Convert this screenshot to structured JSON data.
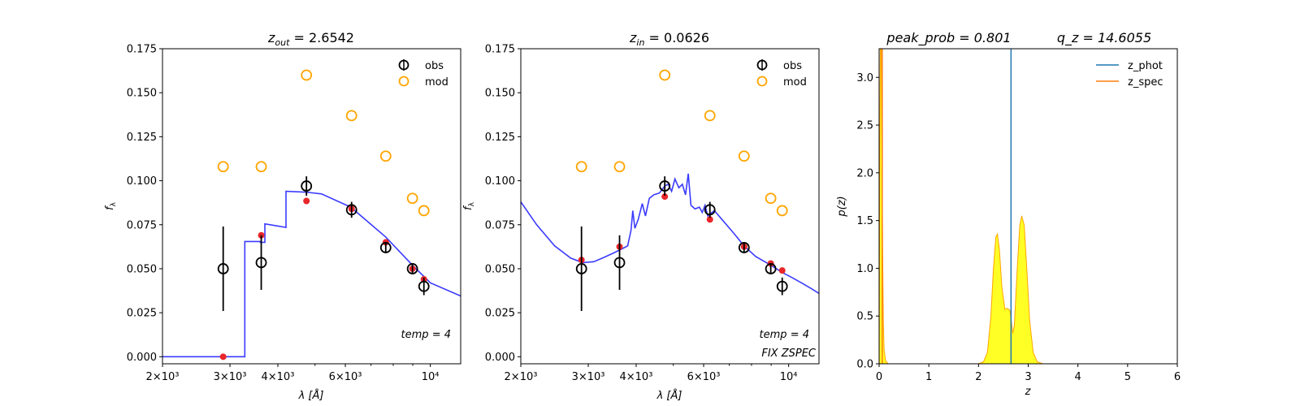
{
  "chart_data": [
    {
      "type": "scatter",
      "title": "z_out = 2.6542",
      "title_main": "z",
      "title_sub": "out",
      "title_value": " = 2.6542",
      "xlabel": "λ [Å]",
      "ylabel": "f_λ",
      "ylabel_main": "f",
      "ylabel_sub": "λ",
      "xscale": "log",
      "xlim": [
        2000,
        12000
      ],
      "ylim": [
        -0.004,
        0.175
      ],
      "xticks": [
        {
          "value": 2000,
          "label": "2×10³"
        },
        {
          "value": 3000,
          "label": "3×10³"
        },
        {
          "value": 4000,
          "label": "4×10³"
        },
        {
          "value": 6000,
          "label": "6×10³"
        },
        {
          "value": 10000,
          "label": "10⁴"
        }
      ],
      "yticks": [
        {
          "value": 0.0,
          "label": "0.000"
        },
        {
          "value": 0.025,
          "label": "0.025"
        },
        {
          "value": 0.05,
          "label": "0.050"
        },
        {
          "value": 0.075,
          "label": "0.075"
        },
        {
          "value": 0.1,
          "label": "0.100"
        },
        {
          "value": 0.125,
          "label": "0.125"
        },
        {
          "value": 0.15,
          "label": "0.150"
        },
        {
          "value": 0.175,
          "label": "0.175"
        }
      ],
      "legend": {
        "position": "top-right",
        "entries": [
          {
            "label": "obs",
            "color": "#000000"
          },
          {
            "label": "mod",
            "color": "#ffa500"
          }
        ]
      },
      "annotations": [
        {
          "text": "temp = 4",
          "position": "bottom-right"
        }
      ],
      "obs": [
        {
          "x": 2880,
          "y": 0.05,
          "err": 0.024
        },
        {
          "x": 3620,
          "y": 0.0535,
          "err": 0.0155
        },
        {
          "x": 4750,
          "y": 0.097,
          "err": 0.0055
        },
        {
          "x": 6230,
          "y": 0.0835,
          "err": 0.0045
        },
        {
          "x": 7650,
          "y": 0.062,
          "err": 0.003
        },
        {
          "x": 8980,
          "y": 0.05,
          "err": 0.0025
        },
        {
          "x": 9620,
          "y": 0.04,
          "err": 0.005
        }
      ],
      "mod": [
        {
          "x": 2880,
          "y": 0.108
        },
        {
          "x": 3620,
          "y": 0.108
        },
        {
          "x": 4750,
          "y": 0.16
        },
        {
          "x": 6230,
          "y": 0.137
        },
        {
          "x": 7650,
          "y": 0.114
        },
        {
          "x": 8980,
          "y": 0.09
        },
        {
          "x": 9620,
          "y": 0.083
        }
      ],
      "fit_points": [
        {
          "x": 2880,
          "y": 0.0
        },
        {
          "x": 3620,
          "y": 0.069
        },
        {
          "x": 4750,
          "y": 0.0885
        },
        {
          "x": 6230,
          "y": 0.084
        },
        {
          "x": 7650,
          "y": 0.065
        },
        {
          "x": 8980,
          "y": 0.05
        },
        {
          "x": 9620,
          "y": 0.044
        }
      ],
      "template_curve": [
        [
          2000,
          0.0
        ],
        [
          3280,
          0.0
        ],
        [
          3280,
          0.0655
        ],
        [
          3600,
          0.0655
        ],
        [
          3600,
          0.065
        ],
        [
          3700,
          0.065
        ],
        [
          3700,
          0.0755
        ],
        [
          4200,
          0.0735
        ],
        [
          4200,
          0.094
        ],
        [
          4750,
          0.0935
        ],
        [
          5200,
          0.0925
        ],
        [
          6200,
          0.085
        ],
        [
          7650,
          0.068
        ],
        [
          8980,
          0.052
        ],
        [
          10000,
          0.042
        ],
        [
          12000,
          0.0345
        ]
      ]
    },
    {
      "type": "scatter",
      "title": "z_in = 0.0626",
      "title_main": "z",
      "title_sub": "in",
      "title_value": " = 0.0626",
      "xlabel": "λ [Å]",
      "ylabel": "f_λ",
      "ylabel_main": "f",
      "ylabel_sub": "λ",
      "xscale": "log",
      "xlim": [
        2000,
        12000
      ],
      "ylim": [
        -0.004,
        0.175
      ],
      "xticks": [
        {
          "value": 2000,
          "label": "2×10³"
        },
        {
          "value": 3000,
          "label": "3×10³"
        },
        {
          "value": 4000,
          "label": "4×10³"
        },
        {
          "value": 6000,
          "label": "6×10³"
        },
        {
          "value": 10000,
          "label": "10⁴"
        }
      ],
      "yticks": [
        {
          "value": 0.0,
          "label": "0.000"
        },
        {
          "value": 0.025,
          "label": "0.025"
        },
        {
          "value": 0.05,
          "label": "0.050"
        },
        {
          "value": 0.075,
          "label": "0.075"
        },
        {
          "value": 0.1,
          "label": "0.100"
        },
        {
          "value": 0.125,
          "label": "0.125"
        },
        {
          "value": 0.15,
          "label": "0.150"
        },
        {
          "value": 0.175,
          "label": "0.175"
        }
      ],
      "legend": {
        "position": "top-right",
        "entries": [
          {
            "label": "obs",
            "color": "#000000"
          },
          {
            "label": "mod",
            "color": "#ffa500"
          }
        ]
      },
      "annotations": [
        {
          "text": "temp = 4",
          "position": "bottom-right"
        },
        {
          "text": "FIX ZSPEC",
          "position": "bottom-right"
        }
      ],
      "obs": [
        {
          "x": 2880,
          "y": 0.05,
          "err": 0.024
        },
        {
          "x": 3620,
          "y": 0.0535,
          "err": 0.0155
        },
        {
          "x": 4750,
          "y": 0.097,
          "err": 0.0055
        },
        {
          "x": 6230,
          "y": 0.0835,
          "err": 0.0045
        },
        {
          "x": 7650,
          "y": 0.062,
          "err": 0.003
        },
        {
          "x": 8980,
          "y": 0.05,
          "err": 0.0025
        },
        {
          "x": 9620,
          "y": 0.04,
          "err": 0.005
        }
      ],
      "mod": [
        {
          "x": 2880,
          "y": 0.108
        },
        {
          "x": 3620,
          "y": 0.108
        },
        {
          "x": 4750,
          "y": 0.16
        },
        {
          "x": 6230,
          "y": 0.137
        },
        {
          "x": 7650,
          "y": 0.114
        },
        {
          "x": 8980,
          "y": 0.09
        },
        {
          "x": 9620,
          "y": 0.083
        }
      ],
      "fit_points": [
        {
          "x": 2880,
          "y": 0.055
        },
        {
          "x": 3620,
          "y": 0.0625
        },
        {
          "x": 4750,
          "y": 0.091
        },
        {
          "x": 6230,
          "y": 0.078
        },
        {
          "x": 7650,
          "y": 0.0625
        },
        {
          "x": 8980,
          "y": 0.053
        },
        {
          "x": 9620,
          "y": 0.049
        }
      ],
      "template_curve": [
        [
          2000,
          0.088
        ],
        [
          2200,
          0.075
        ],
        [
          2450,
          0.063
        ],
        [
          2700,
          0.056
        ],
        [
          2900,
          0.0535
        ],
        [
          3100,
          0.054
        ],
        [
          3300,
          0.0565
        ],
        [
          3500,
          0.059
        ],
        [
          3650,
          0.061
        ],
        [
          3800,
          0.063
        ],
        [
          3880,
          0.072
        ],
        [
          3920,
          0.083
        ],
        [
          3970,
          0.073
        ],
        [
          4050,
          0.078
        ],
        [
          4150,
          0.087
        ],
        [
          4230,
          0.08
        ],
        [
          4330,
          0.09
        ],
        [
          4450,
          0.092
        ],
        [
          4600,
          0.093
        ],
        [
          4750,
          0.097
        ],
        [
          4850,
          0.098
        ],
        [
          4950,
          0.094
        ],
        [
          5050,
          0.101
        ],
        [
          5170,
          0.096
        ],
        [
          5280,
          0.098
        ],
        [
          5380,
          0.092
        ],
        [
          5470,
          0.104
        ],
        [
          5560,
          0.086
        ],
        [
          5700,
          0.084
        ],
        [
          5850,
          0.085
        ],
        [
          5950,
          0.082
        ],
        [
          6050,
          0.086
        ],
        [
          6150,
          0.08
        ],
        [
          6400,
          0.083
        ],
        [
          6700,
          0.078
        ],
        [
          7200,
          0.07
        ],
        [
          7650,
          0.063
        ],
        [
          8200,
          0.057
        ],
        [
          8980,
          0.052
        ],
        [
          9600,
          0.048
        ],
        [
          10200,
          0.045
        ],
        [
          10800,
          0.042
        ],
        [
          11400,
          0.039
        ],
        [
          12000,
          0.036
        ]
      ]
    },
    {
      "type": "area",
      "title": "peak_prob = 0.801     q_z = 14.6055",
      "title_part1": "peak_prob = 0.801",
      "title_part2": "q_z = 14.6055",
      "xlabel": "z",
      "ylabel": "p(z)",
      "xlim": [
        0,
        6
      ],
      "ylim": [
        0,
        3.3
      ],
      "xticks": [
        {
          "value": 0,
          "label": "0"
        },
        {
          "value": 1,
          "label": "1"
        },
        {
          "value": 2,
          "label": "2"
        },
        {
          "value": 3,
          "label": "3"
        },
        {
          "value": 4,
          "label": "4"
        },
        {
          "value": 5,
          "label": "5"
        },
        {
          "value": 6,
          "label": "6"
        }
      ],
      "yticks": [
        {
          "value": 0.0,
          "label": "0.0"
        },
        {
          "value": 0.5,
          "label": "0.5"
        },
        {
          "value": 1.0,
          "label": "1.0"
        },
        {
          "value": 1.5,
          "label": "1.5"
        },
        {
          "value": 2.0,
          "label": "2.0"
        },
        {
          "value": 2.5,
          "label": "2.5"
        },
        {
          "value": 3.0,
          "label": "3.0"
        }
      ],
      "legend": {
        "position": "top-right",
        "entries": [
          {
            "label": "z_phot",
            "color": "#1f77b4"
          },
          {
            "label": "z_spec",
            "color": "#ff7f0e"
          }
        ]
      },
      "z_phot": 2.6542,
      "z_spec": 0.0626,
      "pz": [
        [
          0.0,
          0.0
        ],
        [
          0.01,
          1.6
        ],
        [
          0.025,
          3.4
        ],
        [
          0.04,
          3.4
        ],
        [
          0.055,
          2.4
        ],
        [
          0.07,
          1.2
        ],
        [
          0.085,
          0.45
        ],
        [
          0.1,
          0.15
        ],
        [
          0.13,
          0.03
        ],
        [
          0.18,
          0.0
        ],
        [
          2.0,
          0.0
        ],
        [
          2.1,
          0.02
        ],
        [
          2.18,
          0.12
        ],
        [
          2.25,
          0.5
        ],
        [
          2.3,
          1.0
        ],
        [
          2.35,
          1.33
        ],
        [
          2.38,
          1.36
        ],
        [
          2.42,
          1.2
        ],
        [
          2.47,
          0.8
        ],
        [
          2.53,
          0.57
        ],
        [
          2.58,
          0.58
        ],
        [
          2.63,
          0.56
        ],
        [
          2.66,
          0.45
        ],
        [
          2.69,
          0.32
        ],
        [
          2.72,
          0.4
        ],
        [
          2.78,
          1.0
        ],
        [
          2.83,
          1.45
        ],
        [
          2.87,
          1.55
        ],
        [
          2.92,
          1.45
        ],
        [
          2.97,
          1.0
        ],
        [
          3.03,
          0.45
        ],
        [
          3.1,
          0.12
        ],
        [
          3.18,
          0.02
        ],
        [
          3.3,
          0.0
        ],
        [
          5.0,
          0.0
        ]
      ]
    }
  ]
}
